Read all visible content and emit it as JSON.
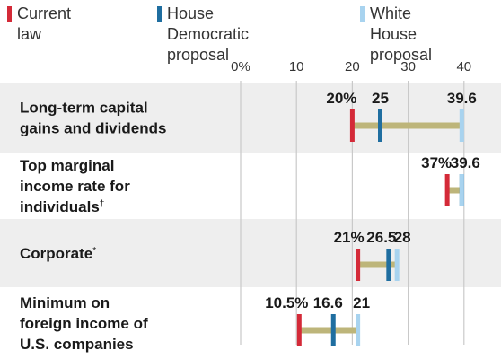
{
  "legend": [
    {
      "label": "Current law",
      "color": "#d42a38"
    },
    {
      "label": "House Democratic\nproposal",
      "color": "#1f6ea0"
    },
    {
      "label": "White House\nproposal",
      "color": "#a8d3ef"
    }
  ],
  "chart_data": {
    "type": "dot range",
    "title": "",
    "xlabel": "",
    "ylabel": "",
    "xlim": [
      0,
      42
    ],
    "x_ticks": [
      0,
      10,
      20,
      30,
      40
    ],
    "x_tick_labels": [
      "0%",
      "10",
      "20",
      "30",
      "40"
    ],
    "grid": "vertical lines at ticks",
    "legend_position": "top",
    "range_color": "#bdb57a",
    "series": [
      {
        "name": "Current law",
        "color": "#d42a38",
        "values": [
          20,
          37,
          21,
          10.5
        ]
      },
      {
        "name": "House Democratic proposal",
        "color": "#1f6ea0",
        "values": [
          25,
          39.6,
          26.5,
          16.6
        ]
      },
      {
        "name": "White House proposal",
        "color": "#a8d3ef",
        "values": [
          39.6,
          39.6,
          28,
          21
        ]
      }
    ],
    "categories": [
      {
        "label": "Long-term capital gains and dividends",
        "lines": [
          "Long-term capital",
          "gains and dividends"
        ],
        "note": ""
      },
      {
        "label": "Top marginal income rate for individuals",
        "lines": [
          "Top marginal",
          "income rate for",
          "individuals"
        ],
        "note": "†"
      },
      {
        "label": "Corporate",
        "lines": [
          "Corporate"
        ],
        "note": "*"
      },
      {
        "label": "Minimum on foreign income of U.S. companies",
        "lines": [
          "Minimum on",
          "foreign income of",
          "U.S. companies"
        ],
        "note": ""
      }
    ],
    "data_labels": [
      [
        "20%",
        "25",
        "39.6"
      ],
      [
        "37%",
        "39.6"
      ],
      [
        "21%",
        "26.5",
        "28"
      ],
      [
        "10.5%",
        "16.6",
        "21"
      ]
    ]
  }
}
